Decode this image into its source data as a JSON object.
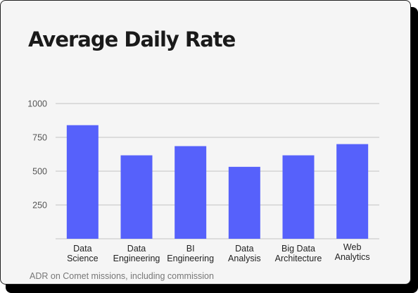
{
  "chart_data": {
    "type": "bar",
    "title": "Average Daily Rate",
    "categories": [
      [
        "Data",
        "Science"
      ],
      [
        "Data",
        "Engineering"
      ],
      [
        "BI",
        "Engineering"
      ],
      [
        "Data",
        "Analysis"
      ],
      [
        "Big Data",
        "Architecture"
      ],
      [
        "Web",
        "Analytics"
      ]
    ],
    "values": [
      840,
      617,
      685,
      532,
      617,
      700
    ],
    "ylim": [
      0,
      1000
    ],
    "yticks": [
      250,
      500,
      750,
      1000
    ],
    "xlabel": "",
    "ylabel": "",
    "grid": true,
    "bar_color": "#5661fb",
    "footnote": "ADR on Comet missions, including commission"
  }
}
